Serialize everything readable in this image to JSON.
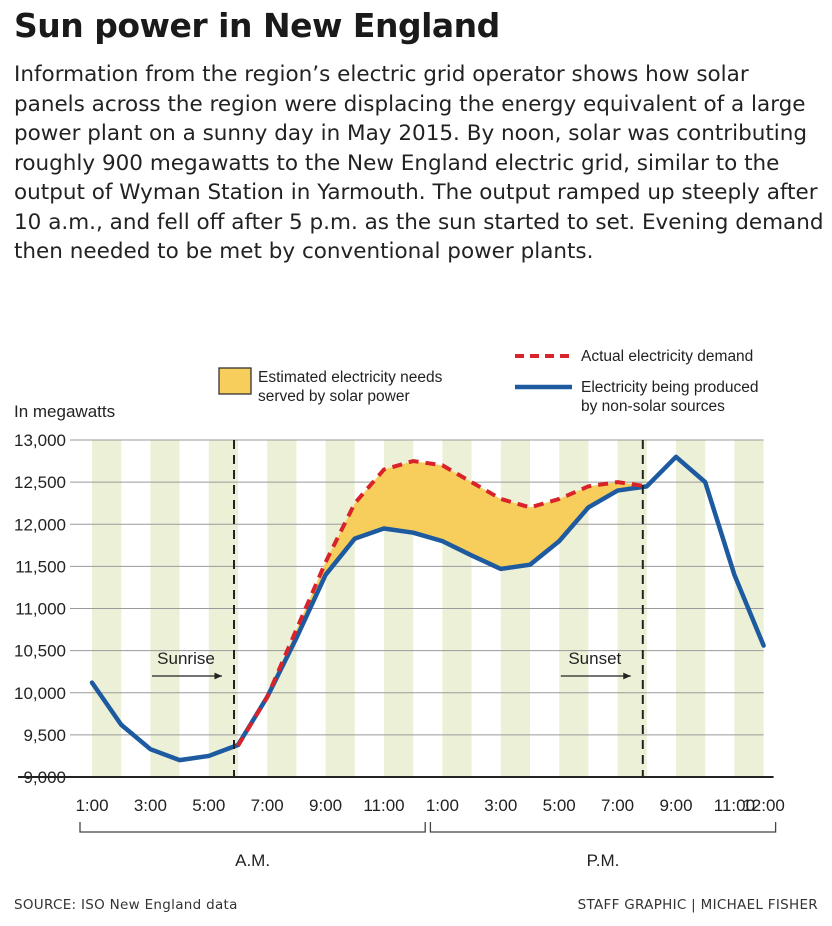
{
  "title": "Sun power in New England",
  "description": "Information from the region’s electric grid operator shows how solar panels across the region were displacing the energy equivalent of a large power plant on a sunny day in May 2015. By noon, solar was contributing roughly 900 megawatts to the New England electric grid, similar to the output of Wyman Station in Yarmouth. The output ramped up steeply after 10 a.m., and fell off after 5 p.m. as the sun started to set. Evening demand then needed to be met by conventional power plants.",
  "footer": {
    "source": "SOURCE: ISO New England data",
    "credit": "STAFF GRAPHIC | MICHAEL FISHER"
  },
  "colors": {
    "demand": "#d8232a",
    "produced": "#1d5aa0",
    "solar_fill": "#f7cd5b",
    "band": "#ecf0d6"
  },
  "chart_data": {
    "type": "line",
    "ylabel": "In megawatts",
    "ylim": [
      9000,
      13000
    ],
    "yticks": [
      9000,
      9500,
      10000,
      10500,
      11000,
      11500,
      12000,
      12500,
      13000
    ],
    "ytick_labels": [
      "9,000",
      "9,500",
      "10,000",
      "10,500",
      "11,000",
      "11,500",
      "12,000",
      "12,500",
      "13,000"
    ],
    "hours": [
      1,
      2,
      3,
      4,
      5,
      6,
      7,
      8,
      9,
      10,
      11,
      12,
      13,
      14,
      15,
      16,
      17,
      18,
      19,
      20,
      21,
      22,
      23,
      24
    ],
    "xtick_labels": [
      {
        "hour": 1,
        "label": "1:00"
      },
      {
        "hour": 3,
        "label": "3:00"
      },
      {
        "hour": 5,
        "label": "5:00"
      },
      {
        "hour": 7,
        "label": "7:00"
      },
      {
        "hour": 9,
        "label": "9:00"
      },
      {
        "hour": 11,
        "label": "11:00"
      },
      {
        "hour": 13,
        "label": "1:00"
      },
      {
        "hour": 15,
        "label": "3:00"
      },
      {
        "hour": 17,
        "label": "5:00"
      },
      {
        "hour": 19,
        "label": "7:00"
      },
      {
        "hour": 21,
        "label": "9:00"
      },
      {
        "hour": 23,
        "label": "11:00"
      },
      {
        "hour": 24,
        "label": "12:00"
      }
    ],
    "periods": [
      {
        "label": "A.M.",
        "from": 1,
        "to": 12
      },
      {
        "label": "P.M.",
        "from": 13,
        "to": 24
      }
    ],
    "series": [
      {
        "name": "Actual electricity demand",
        "style": "dashed",
        "hours": [
          6,
          7,
          8,
          9,
          10,
          11,
          12,
          13,
          14,
          15,
          16,
          17,
          18,
          19,
          20
        ],
        "values": [
          9370,
          9950,
          10750,
          11550,
          12250,
          12650,
          12750,
          12700,
          12500,
          12300,
          12200,
          12300,
          12450,
          12500,
          12450
        ]
      },
      {
        "name": "Electricity being produced by non-solar sources",
        "style": "solid",
        "hours": [
          1,
          2,
          3,
          4,
          5,
          6,
          7,
          8,
          9,
          10,
          11,
          12,
          13,
          14,
          15,
          16,
          17,
          18,
          19,
          20,
          21,
          22,
          23,
          24
        ],
        "values": [
          10120,
          9620,
          9330,
          9200,
          9250,
          9380,
          9950,
          10650,
          11400,
          11830,
          11950,
          11900,
          11800,
          11630,
          11470,
          11520,
          11800,
          12200,
          12400,
          12450,
          12800,
          12500,
          11400,
          10560
        ]
      }
    ],
    "fill_between": {
      "label": "Estimated electricity needs served by solar power"
    },
    "markers": [
      {
        "label": "Sunrise",
        "hour": 6
      },
      {
        "label": "Sunset",
        "hour": 20
      }
    ]
  }
}
